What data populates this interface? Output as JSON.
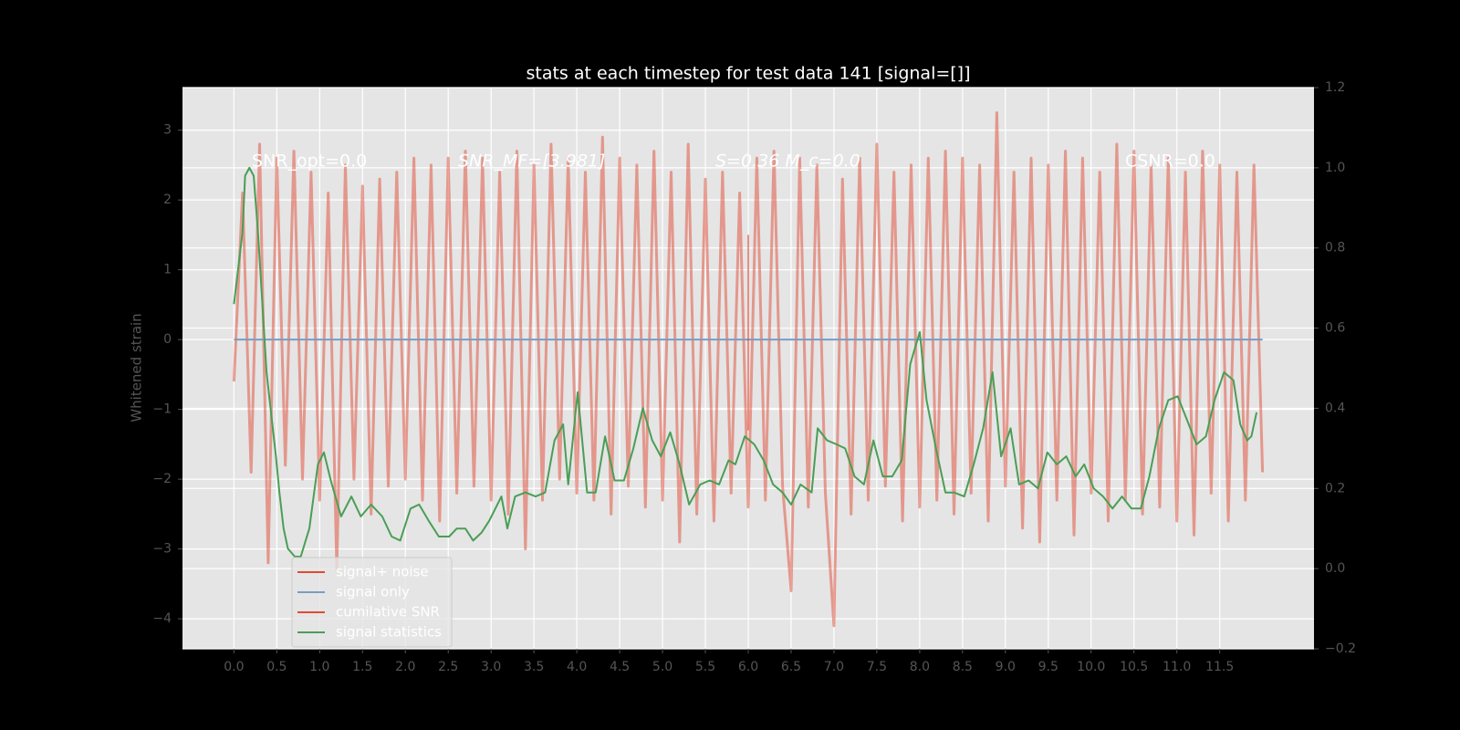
{
  "chart_data": {
    "type": "line",
    "title": "stats at each timestep for test data 141 [signal=[]]",
    "ylabel": "Whitened strain",
    "annotations": [
      "SNR_opt=0.0",
      "SNR_MF=[3.981]",
      "S=0.36   M_c=0.0",
      "CSNR=0.0"
    ],
    "xlim": [
      -0.6,
      12.6
    ],
    "ylim": [
      -4.43,
      3.61
    ],
    "y2lim": [
      -0.2,
      1.2
    ],
    "xticks": [
      {
        "value": 0,
        "label": "0.0"
      },
      0.5,
      {
        "value": 1,
        "label": "1.0"
      },
      1.5,
      {
        "value": 2,
        "label": "2.0"
      },
      2.5,
      {
        "value": 3,
        "label": "3.0"
      },
      3.5,
      {
        "value": 4,
        "label": "4.0"
      },
      4.5,
      {
        "value": 5,
        "label": "5.0"
      },
      5.5,
      {
        "value": 6,
        "label": "6.0"
      },
      6.5,
      {
        "value": 7,
        "label": "7.0"
      },
      7.5,
      {
        "value": 8,
        "label": "8.0"
      },
      8.5,
      {
        "value": 9,
        "label": "9.0"
      },
      9.5,
      {
        "value": 10,
        "label": "10.0"
      },
      10.5,
      {
        "value": 11,
        "label": "11.0"
      },
      11.5
    ],
    "yticks": [
      {
        "value": -4,
        "label": "−4"
      },
      {
        "value": -3,
        "label": "−3"
      },
      {
        "value": -2,
        "label": "−2"
      },
      {
        "value": -1,
        "label": "−1"
      },
      0,
      1,
      2,
      3
    ],
    "y2ticks": [
      {
        "value": -0.2,
        "label": "−0.2"
      },
      {
        "value": 0,
        "label": "0.0"
      },
      0.2,
      0.4,
      0.6,
      0.8,
      {
        "value": 1,
        "label": "1.0"
      },
      1.2
    ],
    "grid": true,
    "legend": "lower left",
    "series": [
      {
        "name": "signal+ noise",
        "color": "#e24a33",
        "x": [
          0,
          0.1,
          0.2,
          0.3,
          0.4,
          0.5,
          0.6,
          0.7,
          0.8,
          0.9,
          1,
          1.1,
          1.2,
          1.3,
          1.4,
          1.5,
          1.6,
          1.7,
          1.8,
          1.9,
          2,
          2.1,
          2.2,
          2.3,
          2.4,
          2.5,
          2.6,
          2.7,
          2.8,
          2.9,
          3,
          3.1,
          3.2,
          3.3,
          3.4,
          3.5,
          3.6,
          3.7,
          3.8,
          3.9,
          4,
          4.1,
          4.2,
          4.3,
          4.4,
          4.5,
          4.6,
          4.7,
          4.8,
          4.9,
          5,
          5.1,
          5.2,
          5.3,
          5.4,
          5.5,
          5.6,
          5.7,
          5.8,
          5.9,
          6,
          6.1,
          6.2,
          6.3,
          6.4,
          6.5,
          6.6,
          6.7,
          6.8,
          6.9,
          7,
          7.1,
          7.2,
          7.3,
          7.4,
          7.5,
          7.6,
          7.7,
          7.8,
          7.9,
          8,
          8.1,
          8.2,
          8.3,
          8.4,
          8.5,
          8.6,
          8.7,
          8.8,
          8.9,
          9,
          9.1,
          9.2,
          9.3,
          9.4,
          9.5,
          9.6,
          9.7,
          9.8,
          9.9,
          10,
          10.1,
          10.2,
          10.3,
          10.4,
          10.5,
          10.6,
          10.7,
          10.8,
          10.9,
          11,
          11.1,
          11.2,
          11.3,
          11.4,
          11.5,
          11.6,
          11.7,
          11.8,
          11.9,
          12
        ],
        "values": [
          -0.6,
          2.1,
          -1.9,
          2.8,
          -3.2,
          2.6,
          -1.8,
          2.7,
          -2.0,
          2.4,
          -2.3,
          2.1,
          -3.3,
          2.5,
          -2.0,
          2.2,
          -2.5,
          2.3,
          -2.1,
          2.4,
          -2.0,
          2.6,
          -2.3,
          2.5,
          -2.6,
          2.6,
          -2.2,
          2.7,
          -2.1,
          2.6,
          -2.3,
          2.4,
          -2.5,
          2.7,
          -3.0,
          2.5,
          -2.3,
          2.8,
          -2.0,
          2.6,
          -2.2,
          2.4,
          -2.3,
          2.9,
          -2.5,
          2.6,
          -2.1,
          2.5,
          -2.4,
          2.7,
          -2.3,
          2.4,
          -2.9,
          2.8,
          -2.5,
          2.3,
          -2.6,
          2.4,
          -2.2,
          2.1,
          -2.4,
          2.6,
          -2.3,
          2.7,
          -2.1,
          -3.6,
          2.6,
          -2.4,
          2.5,
          -2.2,
          -4.1,
          2.3,
          -2.5,
          2.6,
          -2.3,
          2.8,
          -2.1,
          2.4,
          -2.6,
          2.5,
          -2.4,
          2.6,
          -2.3,
          2.7,
          -2.5,
          2.6,
          -2.2,
          2.5,
          -2.6,
          3.25,
          -2.1,
          2.4,
          -2.7,
          2.6,
          -2.9,
          2.5,
          -2.3,
          2.7,
          -2.8,
          2.6,
          -2.2,
          2.4,
          -2.6,
          2.8,
          -2.3,
          2.7,
          -2.5,
          2.5,
          -2.4,
          2.6,
          -2.6,
          2.4,
          -2.8,
          2.7,
          -2.2,
          2.5,
          -2.6,
          2.4,
          -2.3,
          2.5,
          -1.9
        ]
      },
      {
        "name": "signal only",
        "color": "#7a9cc4",
        "x": [
          0,
          12
        ],
        "values": [
          0,
          0
        ]
      },
      {
        "name": "cumilative SNR",
        "color": "#e24a33",
        "x": [
          6,
          6
        ],
        "values": [
          1.5,
          -1.3
        ]
      },
      {
        "name": "signal statistics",
        "color": "#4a9e55",
        "axis": "y2",
        "x": [
          0,
          0.1,
          0.13,
          0.18,
          0.23,
          0.28,
          0.38,
          0.49,
          0.53,
          0.58,
          0.63,
          0.71,
          0.78,
          0.88,
          0.98,
          1.05,
          1.13,
          1.25,
          1.37,
          1.48,
          1.6,
          1.73,
          1.84,
          1.94,
          2.06,
          2.16,
          2.27,
          2.39,
          2.51,
          2.6,
          2.7,
          2.79,
          2.89,
          2.98,
          3.12,
          3.19,
          3.28,
          3.4,
          3.52,
          3.63,
          3.74,
          3.84,
          3.9,
          4.01,
          4.12,
          4.22,
          4.33,
          4.44,
          4.55,
          4.66,
          4.77,
          4.88,
          4.98,
          5.09,
          5.2,
          5.31,
          5.44,
          5.55,
          5.66,
          5.77,
          5.85,
          5.96,
          6.07,
          6.18,
          6.29,
          6.4,
          6.5,
          6.61,
          6.74,
          6.81,
          6.92,
          7.03,
          7.13,
          7.24,
          7.35,
          7.46,
          7.57,
          7.68,
          7.79,
          7.89,
          8,
          8.08,
          8.19,
          8.3,
          8.4,
          8.52,
          8.63,
          8.74,
          8.85,
          8.95,
          9.06,
          9.16,
          9.27,
          9.38,
          9.49,
          9.6,
          9.71,
          9.82,
          9.92,
          10.03,
          10.14,
          10.25,
          10.36,
          10.47,
          10.58,
          10.68,
          10.79,
          10.9,
          11.01,
          11.12,
          11.23,
          11.34,
          11.44,
          11.55,
          11.66,
          11.74,
          11.82,
          11.87,
          11.93
        ],
        "values": [
          0.66,
          0.84,
          0.98,
          1.0,
          0.98,
          0.84,
          0.49,
          0.28,
          0.19,
          0.1,
          0.05,
          0.03,
          0.03,
          0.1,
          0.26,
          0.29,
          0.22,
          0.13,
          0.18,
          0.13,
          0.16,
          0.13,
          0.08,
          0.07,
          0.15,
          0.16,
          0.12,
          0.08,
          0.08,
          0.1,
          0.1,
          0.07,
          0.09,
          0.12,
          0.18,
          0.1,
          0.18,
          0.19,
          0.18,
          0.19,
          0.32,
          0.36,
          0.21,
          0.44,
          0.19,
          0.19,
          0.33,
          0.22,
          0.22,
          0.3,
          0.4,
          0.32,
          0.28,
          0.34,
          0.26,
          0.16,
          0.21,
          0.22,
          0.21,
          0.27,
          0.26,
          0.33,
          0.31,
          0.27,
          0.21,
          0.19,
          0.16,
          0.21,
          0.19,
          0.35,
          0.32,
          0.31,
          0.3,
          0.23,
          0.21,
          0.32,
          0.23,
          0.23,
          0.27,
          0.51,
          0.59,
          0.42,
          0.3,
          0.19,
          0.19,
          0.18,
          0.26,
          0.35,
          0.49,
          0.28,
          0.35,
          0.21,
          0.22,
          0.2,
          0.29,
          0.26,
          0.28,
          0.23,
          0.26,
          0.2,
          0.18,
          0.15,
          0.18,
          0.15,
          0.15,
          0.23,
          0.35,
          0.42,
          0.43,
          0.37,
          0.31,
          0.33,
          0.42,
          0.49,
          0.47,
          0.36,
          0.32,
          0.33,
          0.39
        ]
      }
    ]
  }
}
